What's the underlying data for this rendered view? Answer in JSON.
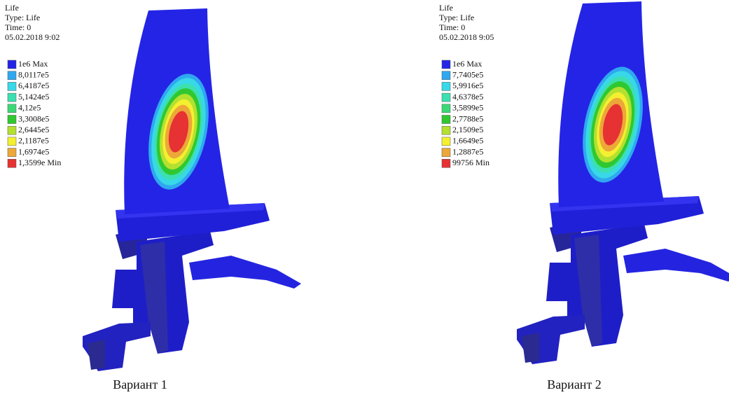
{
  "panels": [
    {
      "header": [
        "Life",
        "Type: Life",
        "Time: 0",
        "05.02.2018  9:02"
      ],
      "legend": [
        {
          "label": "1e6 Max",
          "color": "#2424e6"
        },
        {
          "label": "8,0117e5",
          "color": "#2fa8f0"
        },
        {
          "label": "6,4187e5",
          "color": "#38d8e8"
        },
        {
          "label": "5,1424e5",
          "color": "#3ce0b0"
        },
        {
          "label": "4,12e5",
          "color": "#3cd878"
        },
        {
          "label": "3,3008e5",
          "color": "#30c830"
        },
        {
          "label": "2,6445e5",
          "color": "#b4e030"
        },
        {
          "label": "2,1187e5",
          "color": "#f4f030"
        },
        {
          "label": "1,6974e5",
          "color": "#eca838"
        },
        {
          "label": "1,3599e Min",
          "color": "#e63232"
        }
      ],
      "caption": "Вариант 1"
    },
    {
      "header": [
        "Life",
        "Type: Life",
        "Time: 0",
        "05.02.2018  9:05"
      ],
      "legend": [
        {
          "label": "1e6 Max",
          "color": "#2424e6"
        },
        {
          "label": "7,7405e5",
          "color": "#2fa8f0"
        },
        {
          "label": "5,9916e5",
          "color": "#38d8e8"
        },
        {
          "label": "4,6378e5",
          "color": "#3ce0b0"
        },
        {
          "label": "3,5899e5",
          "color": "#3cd878"
        },
        {
          "label": "2,7788e5",
          "color": "#30c830"
        },
        {
          "label": "2,1509e5",
          "color": "#b4e030"
        },
        {
          "label": "1,6649e5",
          "color": "#f4f030"
        },
        {
          "label": "1,2887e5",
          "color": "#eca838"
        },
        {
          "label": "99756 Min",
          "color": "#e63232"
        }
      ],
      "caption": "Вариант 2"
    }
  ]
}
